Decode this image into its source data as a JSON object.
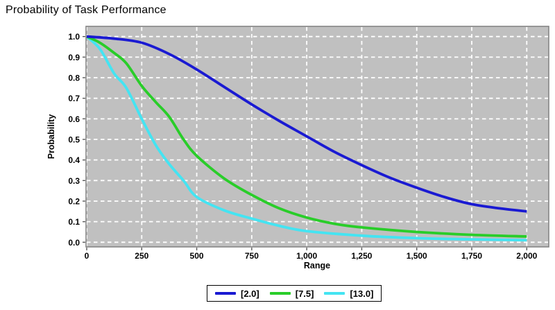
{
  "title": "Probability of Task Performance",
  "chart_data": {
    "type": "line",
    "title": "Probability of Task Performance",
    "xlabel": "Range",
    "ylabel": "Probability",
    "xlim": [
      0,
      2000
    ],
    "ylim": [
      0.0,
      1.0
    ],
    "grid": "white dashed gridlines on gray plot background",
    "legend_position": "bottom-center",
    "x_ticks": [
      {
        "v": 0,
        "label": "0"
      },
      {
        "v": 250,
        "label": "250"
      },
      {
        "v": 500,
        "label": "500"
      },
      {
        "v": 750,
        "label": "750"
      },
      {
        "v": 1000,
        "label": "1,000"
      },
      {
        "v": 1250,
        "label": "1,250"
      },
      {
        "v": 1500,
        "label": "1,500"
      },
      {
        "v": 1750,
        "label": "1,750"
      },
      {
        "v": 2000,
        "label": "2,000"
      }
    ],
    "y_ticks": [
      {
        "v": 0.0,
        "label": "0.0"
      },
      {
        "v": 0.1,
        "label": "0.1"
      },
      {
        "v": 0.2,
        "label": "0.2"
      },
      {
        "v": 0.3,
        "label": "0.3"
      },
      {
        "v": 0.4,
        "label": "0.4"
      },
      {
        "v": 0.5,
        "label": "0.5"
      },
      {
        "v": 0.6,
        "label": "0.6"
      },
      {
        "v": 0.7,
        "label": "0.7"
      },
      {
        "v": 0.8,
        "label": "0.8"
      },
      {
        "v": 0.9,
        "label": "0.9"
      },
      {
        "v": 1.0,
        "label": "1.0"
      }
    ],
    "series": [
      {
        "name": "[2.0]",
        "color": "#1a1ad2",
        "points": [
          [
            0,
            1.0
          ],
          [
            125,
            0.99
          ],
          [
            250,
            0.97
          ],
          [
            375,
            0.915
          ],
          [
            500,
            0.84
          ],
          [
            625,
            0.755
          ],
          [
            750,
            0.67
          ],
          [
            875,
            0.59
          ],
          [
            1000,
            0.515
          ],
          [
            1125,
            0.44
          ],
          [
            1250,
            0.375
          ],
          [
            1375,
            0.315
          ],
          [
            1500,
            0.265
          ],
          [
            1625,
            0.22
          ],
          [
            1750,
            0.185
          ],
          [
            1875,
            0.165
          ],
          [
            2000,
            0.15
          ]
        ]
      },
      {
        "name": "[7.5]",
        "color": "#29cd29",
        "points": [
          [
            0,
            1.0
          ],
          [
            60,
            0.97
          ],
          [
            125,
            0.92
          ],
          [
            180,
            0.87
          ],
          [
            250,
            0.76
          ],
          [
            315,
            0.68
          ],
          [
            375,
            0.61
          ],
          [
            440,
            0.5
          ],
          [
            500,
            0.42
          ],
          [
            625,
            0.31
          ],
          [
            750,
            0.23
          ],
          [
            875,
            0.165
          ],
          [
            1000,
            0.12
          ],
          [
            1125,
            0.09
          ],
          [
            1250,
            0.072
          ],
          [
            1500,
            0.05
          ],
          [
            1750,
            0.036
          ],
          [
            2000,
            0.028
          ]
        ]
      },
      {
        "name": "[13.0]",
        "color": "#44e4f2",
        "points": [
          [
            0,
            1.0
          ],
          [
            60,
            0.94
          ],
          [
            125,
            0.82
          ],
          [
            180,
            0.75
          ],
          [
            250,
            0.6
          ],
          [
            315,
            0.47
          ],
          [
            375,
            0.38
          ],
          [
            440,
            0.3
          ],
          [
            500,
            0.22
          ],
          [
            625,
            0.155
          ],
          [
            750,
            0.115
          ],
          [
            875,
            0.08
          ],
          [
            1000,
            0.054
          ],
          [
            1250,
            0.032
          ],
          [
            1500,
            0.02
          ],
          [
            1750,
            0.014
          ],
          [
            2000,
            0.01
          ]
        ]
      }
    ]
  },
  "colors": {
    "plot_bg": "#c0c0c0",
    "grid": "#ffffff",
    "frame": "#858585",
    "tick": "#5a5a5a",
    "text": "#000000",
    "legend_border": "#000000",
    "legend_bg": "#ffffff"
  }
}
